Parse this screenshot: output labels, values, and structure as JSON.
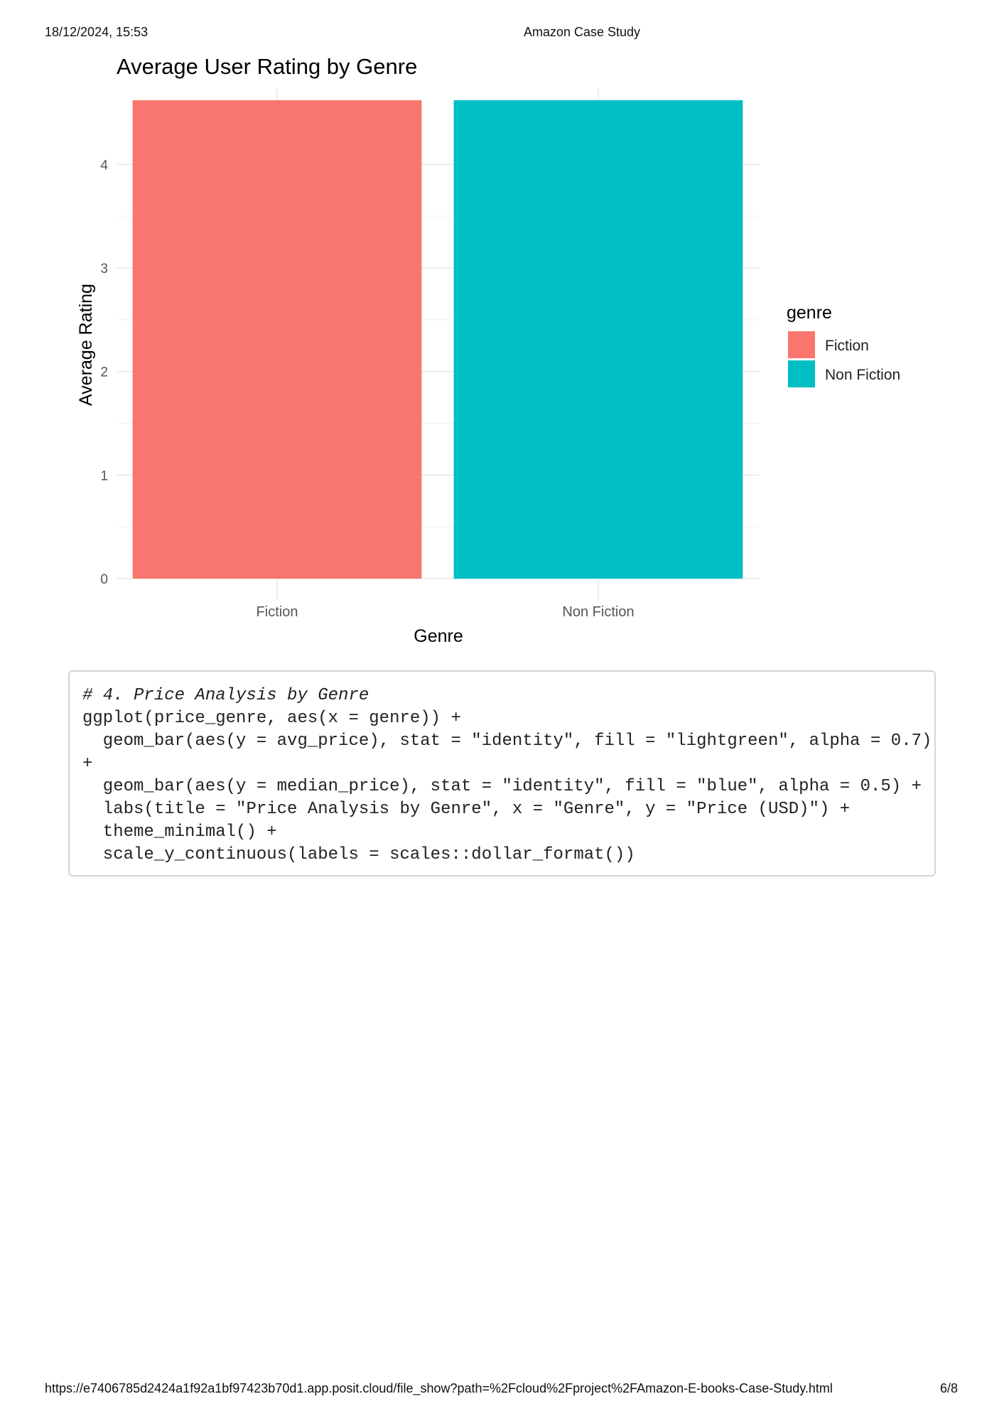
{
  "header": {
    "datetime": "18/12/2024, 15:53",
    "doc_title": "Amazon Case Study"
  },
  "footer": {
    "url": "https://e7406785d2424a1f92a1bf97423b70d1.app.posit.cloud/file_show?path=%2Fcloud%2Fproject%2FAmazon-E-books-Case-Study.html",
    "page": "6/8"
  },
  "chart_data": {
    "type": "bar",
    "title": "Average User Rating by Genre",
    "xlabel": "Genre",
    "ylabel": "Average Rating",
    "categories": [
      "Fiction",
      "Non Fiction"
    ],
    "values": [
      4.62,
      4.62
    ],
    "ylim": [
      0,
      4.73
    ],
    "yticks": [
      0,
      1,
      2,
      3,
      4
    ],
    "grid": true,
    "colors": [
      "#F8766D",
      "#00BFC4"
    ],
    "legend": {
      "title": "genre",
      "position": "right",
      "entries": [
        {
          "label": "Fiction",
          "color": "#F8766D"
        },
        {
          "label": "Non Fiction",
          "color": "#00BFC4"
        }
      ]
    }
  },
  "code": {
    "lines": [
      "# 4. Price Analysis by Genre",
      "ggplot(price_genre, aes(x = genre)) +",
      "  geom_bar(aes(y = avg_price), stat = \"identity\", fill = \"lightgreen\", alpha = 0.7)",
      "+",
      "  geom_bar(aes(y = median_price), stat = \"identity\", fill = \"blue\", alpha = 0.5) +",
      "  labs(title = \"Price Analysis by Genre\", x = \"Genre\", y = \"Price (USD)\") +",
      "  theme_minimal() +",
      "  scale_y_continuous(labels = scales::dollar_format())"
    ]
  }
}
